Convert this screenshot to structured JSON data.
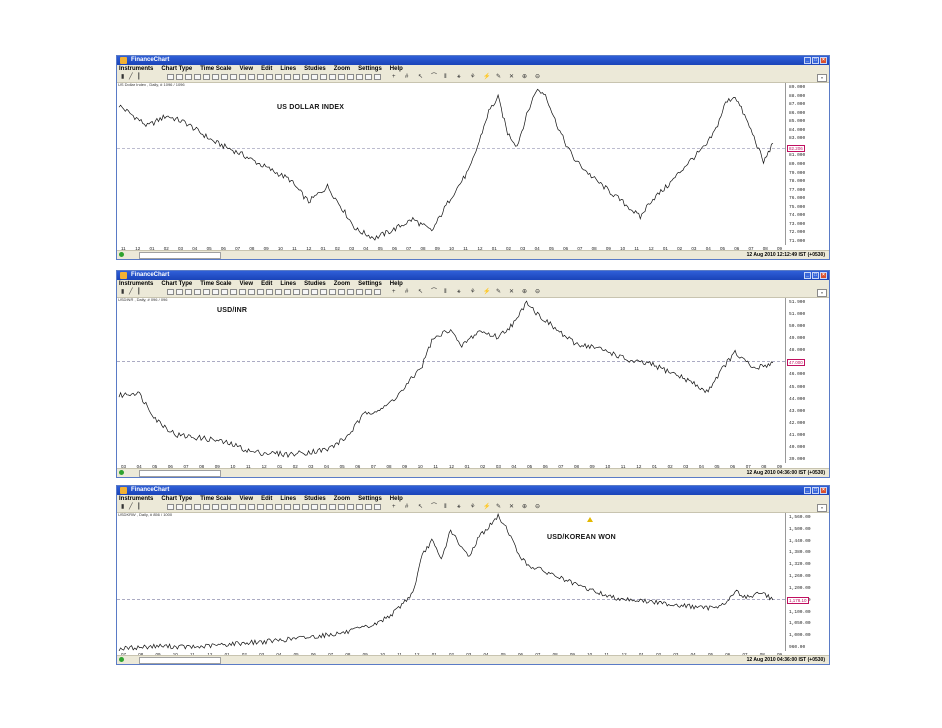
{
  "menu": [
    "Instruments",
    "Chart Type",
    "Time Scale",
    "View",
    "Edit",
    "Lines",
    "Studies",
    "Zoom",
    "Settings",
    "Help"
  ],
  "colors": {
    "price": "#111111",
    "ref_line": "#7a7aa0",
    "last_value": "#c01060"
  },
  "panels": [
    {
      "window_title": "FinanceChart",
      "info": "US Dollar Index , Daily, # 1096 / 1096",
      "status_time": "12 Aug 2010 12:12:49 IST (+0530)",
      "x_labels": [
        "11",
        "12",
        "01",
        "02",
        "03",
        "04",
        "05",
        "06",
        "07",
        "08",
        "09",
        "10",
        "11",
        "12",
        "01",
        "02",
        "03",
        "04",
        "05",
        "06",
        "07",
        "08",
        "09",
        "10",
        "11",
        "12",
        "01",
        "02",
        "03",
        "04",
        "05",
        "06",
        "07",
        "08",
        "09",
        "10",
        "11",
        "12",
        "01",
        "02",
        "03",
        "04",
        "05",
        "06",
        "07",
        "08",
        "09"
      ],
      "year_labels": [
        {
          "i": 0,
          "t": "11/07/06"
        },
        {
          "i": 2,
          "t": "2007"
        },
        {
          "i": 14,
          "t": "2008"
        },
        {
          "i": 26,
          "t": "2009"
        },
        {
          "i": 38,
          "t": "2010"
        }
      ],
      "ytick_labels": [
        "89.000",
        "88.000",
        "87.000",
        "86.000",
        "85.000",
        "84.000",
        "83.000",
        "82.000",
        "81.000",
        "80.000",
        "79.000",
        "78.000",
        "77.000",
        "76.000",
        "75.000",
        "74.000",
        "73.000",
        "72.000",
        "71.000"
      ],
      "last_value_label": "82.206",
      "chart_data": {
        "type": "line",
        "title": "US DOLLAR INDEX",
        "ylim": [
          71,
          89.8
        ],
        "ref_line": 82.2,
        "anchors": [
          [
            0,
            87.2
          ],
          [
            3,
            84.8
          ],
          [
            5,
            86.0
          ],
          [
            7,
            85.2
          ],
          [
            10,
            83.0
          ],
          [
            13,
            81.5
          ],
          [
            15,
            80.3
          ],
          [
            18,
            78.6
          ],
          [
            20,
            76.0
          ],
          [
            22,
            77.8
          ],
          [
            24,
            74.5
          ],
          [
            25,
            72.8
          ],
          [
            27,
            71.8
          ],
          [
            29,
            72.8
          ],
          [
            31,
            74.0
          ],
          [
            33,
            72.6
          ],
          [
            35,
            76.5
          ],
          [
            37,
            79.8
          ],
          [
            38,
            83.0
          ],
          [
            39,
            86.5
          ],
          [
            40,
            88.1
          ],
          [
            41,
            84.0
          ],
          [
            42,
            82.5
          ],
          [
            43,
            86.0
          ],
          [
            44,
            89.0
          ],
          [
            45,
            88.5
          ],
          [
            46,
            85.5
          ],
          [
            47,
            83.0
          ],
          [
            48,
            81.0
          ],
          [
            50,
            78.8
          ],
          [
            52,
            77.0
          ],
          [
            54,
            75.2
          ],
          [
            55,
            74.2
          ],
          [
            56,
            76.0
          ],
          [
            58,
            78.0
          ],
          [
            60,
            80.5
          ],
          [
            62,
            82.6
          ],
          [
            63,
            84.5
          ],
          [
            64,
            87.5
          ],
          [
            65,
            88.3
          ],
          [
            66,
            86.0
          ],
          [
            67,
            83.5
          ],
          [
            68,
            80.6
          ],
          [
            69,
            82.8
          ]
        ]
      }
    },
    {
      "window_title": "FinanceChart",
      "info": "USDINR , Daily, # 096 / 096",
      "status_time": "12 Aug 2010 04:36:00 IST (+0530)",
      "x_labels": [
        "03",
        "04",
        "05",
        "06",
        "07",
        "08",
        "09",
        "10",
        "11",
        "12",
        "01",
        "02",
        "03",
        "04",
        "05",
        "06",
        "07",
        "08",
        "09",
        "10",
        "11",
        "12",
        "01",
        "02",
        "03",
        "04",
        "05",
        "06",
        "07",
        "08",
        "09",
        "10",
        "11",
        "12",
        "01",
        "02",
        "03",
        "04",
        "05",
        "06",
        "07",
        "08",
        "09"
      ],
      "year_labels": [
        {
          "i": 0,
          "t": "03/04/07"
        },
        {
          "i": 10,
          "t": "2008"
        },
        {
          "i": 22,
          "t": "2009"
        },
        {
          "i": 34,
          "t": "2010"
        }
      ],
      "ytick_labels": [
        "51.900",
        "51.000",
        "50.000",
        "49.000",
        "48.000",
        "47.000",
        "46.000",
        "45.000",
        "44.000",
        "43.000",
        "42.000",
        "41.000",
        "40.000",
        "39.000"
      ],
      "last_value_label": "47.000",
      "chart_data": {
        "type": "line",
        "title": "USD/INR",
        "ylim": [
          38.5,
          52.0
        ],
        "ref_line": 46.8,
        "anchors": [
          [
            0,
            44.0
          ],
          [
            2,
            44.3
          ],
          [
            4,
            42.0
          ],
          [
            6,
            40.8
          ],
          [
            10,
            40.4
          ],
          [
            12,
            40.0
          ],
          [
            14,
            39.4
          ],
          [
            18,
            39.2
          ],
          [
            22,
            39.6
          ],
          [
            24,
            40.6
          ],
          [
            26,
            42.6
          ],
          [
            28,
            43.0
          ],
          [
            30,
            44.5
          ],
          [
            32,
            46.5
          ],
          [
            33,
            48.5
          ],
          [
            35,
            49.5
          ],
          [
            36,
            48.0
          ],
          [
            38,
            49.3
          ],
          [
            40,
            48.8
          ],
          [
            42,
            50.2
          ],
          [
            43,
            51.8
          ],
          [
            44,
            50.8
          ],
          [
            46,
            49.5
          ],
          [
            48,
            48.3
          ],
          [
            50,
            48.0
          ],
          [
            52,
            47.5
          ],
          [
            54,
            46.8
          ],
          [
            56,
            46.6
          ],
          [
            58,
            46.0
          ],
          [
            60,
            45.3
          ],
          [
            62,
            44.3
          ],
          [
            64,
            46.6
          ],
          [
            65,
            47.5
          ],
          [
            67,
            46.2
          ],
          [
            69,
            46.7
          ]
        ]
      }
    },
    {
      "window_title": "FinanceChart",
      "info": "USDKRW , Daily, # 856 / 1000",
      "status_time": "12 Aug 2010 04:36:00 IST (+0530)",
      "x_labels": [
        "07",
        "08",
        "09",
        "10",
        "11",
        "12",
        "01",
        "02",
        "03",
        "04",
        "05",
        "06",
        "07",
        "08",
        "09",
        "10",
        "11",
        "12",
        "01",
        "02",
        "03",
        "04",
        "05",
        "06",
        "07",
        "08",
        "09",
        "10",
        "11",
        "12",
        "01",
        "02",
        "03",
        "04",
        "05",
        "06",
        "07",
        "08",
        "09"
      ],
      "year_labels": [
        {
          "i": 6,
          "t": "2008"
        },
        {
          "i": 18,
          "t": "2009"
        },
        {
          "i": 30,
          "t": "2010"
        }
      ],
      "ytick_labels": [
        "1,560.00",
        "1,500.00",
        "1,440.00",
        "1,380.00",
        "1,320.00",
        "1,260.00",
        "1,200.00",
        "1,150.00",
        "1,100.00",
        "1,050.00",
        "1,000.00",
        "960.00"
      ],
      "last_value_label": "1,178.10",
      "chart_data": {
        "type": "line",
        "title": "USD/KOREAN WON",
        "ylim": [
          945,
          1575
        ],
        "ref_line": 1180,
        "anchors": [
          [
            0,
            955
          ],
          [
            4,
            968
          ],
          [
            8,
            962
          ],
          [
            12,
            978
          ],
          [
            16,
            990
          ],
          [
            20,
            1008
          ],
          [
            24,
            1030
          ],
          [
            27,
            1065
          ],
          [
            29,
            1120
          ],
          [
            31,
            1210
          ],
          [
            32,
            1380
          ],
          [
            33,
            1450
          ],
          [
            34,
            1360
          ],
          [
            35,
            1500
          ],
          [
            36,
            1420
          ],
          [
            37,
            1380
          ],
          [
            38,
            1470
          ],
          [
            39,
            1510
          ],
          [
            40,
            1560
          ],
          [
            41,
            1500
          ],
          [
            42,
            1400
          ],
          [
            43,
            1340
          ],
          [
            46,
            1290
          ],
          [
            48,
            1250
          ],
          [
            50,
            1220
          ],
          [
            52,
            1190
          ],
          [
            54,
            1180
          ],
          [
            56,
            1170
          ],
          [
            58,
            1160
          ],
          [
            60,
            1150
          ],
          [
            62,
            1140
          ],
          [
            64,
            1160
          ],
          [
            65,
            1220
          ],
          [
            66,
            1190
          ],
          [
            68,
            1210
          ],
          [
            69,
            1178
          ]
        ]
      }
    }
  ]
}
